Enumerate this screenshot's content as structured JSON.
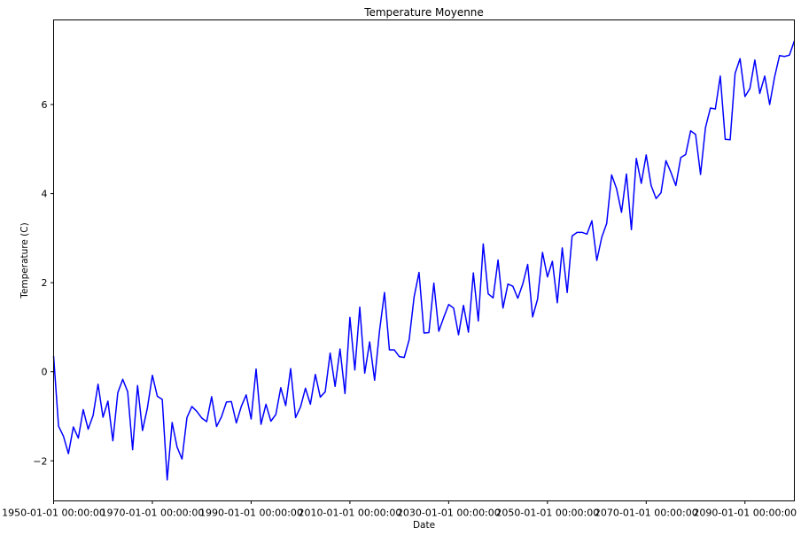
{
  "chart_data": {
    "type": "line",
    "title": "Temperature Moyenne",
    "xlabel": "Date",
    "ylabel": "Temperature (C)",
    "xlim": [
      1950,
      2100
    ],
    "ylim": [
      -2.9,
      7.9
    ],
    "x_ticks": [
      {
        "value": 1950,
        "label": "1950-01-01 00:00:00"
      },
      {
        "value": 1970,
        "label": "1970-01-01 00:00:00"
      },
      {
        "value": 1990,
        "label": "1990-01-01 00:00:00"
      },
      {
        "value": 2010,
        "label": "2010-01-01 00:00:00"
      },
      {
        "value": 2030,
        "label": "2030-01-01 00:00:00"
      },
      {
        "value": 2050,
        "label": "2050-01-01 00:00:00"
      },
      {
        "value": 2070,
        "label": "2070-01-01 00:00:00"
      },
      {
        "value": 2090,
        "label": "2090-01-01 00:00:00"
      }
    ],
    "y_ticks": [
      {
        "value": -2,
        "label": "−2"
      },
      {
        "value": 0,
        "label": "0"
      },
      {
        "value": 2,
        "label": "2"
      },
      {
        "value": 4,
        "label": "4"
      },
      {
        "value": 6,
        "label": "6"
      }
    ],
    "grid": false,
    "series": [
      {
        "name": "Temperature Moyenne",
        "color": "#0000ff",
        "x_start": 1950,
        "x_step": 1,
        "values": [
          0.35,
          -1.22,
          -1.45,
          -1.84,
          -1.24,
          -1.49,
          -0.85,
          -1.29,
          -0.98,
          -0.28,
          -1.02,
          -0.66,
          -1.55,
          -0.47,
          -0.17,
          -0.45,
          -1.75,
          -0.31,
          -1.32,
          -0.81,
          -0.08,
          -0.55,
          -0.62,
          -2.43,
          -1.14,
          -1.69,
          -1.96,
          -1.03,
          -0.78,
          -0.89,
          -1.04,
          -1.12,
          -0.56,
          -1.23,
          -1.01,
          -0.68,
          -0.67,
          -1.15,
          -0.78,
          -0.52,
          -1.06,
          0.06,
          -1.18,
          -0.73,
          -1.11,
          -0.96,
          -0.36,
          -0.76,
          0.07,
          -1.03,
          -0.79,
          -0.37,
          -0.73,
          -0.06,
          -0.57,
          -0.45,
          0.42,
          -0.33,
          0.51,
          -0.49,
          1.22,
          0.04,
          1.45,
          -0.03,
          0.67,
          -0.19,
          0.92,
          1.78,
          0.49,
          0.49,
          0.34,
          0.32,
          0.72,
          1.68,
          2.23,
          0.87,
          0.88,
          1.99,
          0.91,
          1.22,
          1.51,
          1.43,
          0.83,
          1.49,
          0.89,
          2.22,
          1.14,
          2.87,
          1.75,
          1.66,
          2.51,
          1.43,
          1.97,
          1.92,
          1.65,
          1.97,
          2.41,
          1.23,
          1.63,
          2.68,
          2.13,
          2.48,
          1.55,
          2.78,
          1.78,
          3.05,
          3.13,
          3.13,
          3.09,
          3.39,
          2.5,
          3.02,
          3.33,
          4.42,
          4.11,
          3.58,
          4.44,
          3.19,
          4.79,
          4.23,
          4.87,
          4.18,
          3.89,
          4.02,
          4.74,
          4.48,
          4.18,
          4.81,
          4.88,
          5.41,
          5.33,
          4.43,
          5.48,
          5.92,
          5.9,
          6.64,
          5.22,
          5.21,
          6.7,
          7.03,
          6.18,
          6.36,
          7.0,
          6.25,
          6.64,
          6.0,
          6.62,
          7.1,
          7.08,
          7.11,
          7.43
        ]
      }
    ]
  }
}
